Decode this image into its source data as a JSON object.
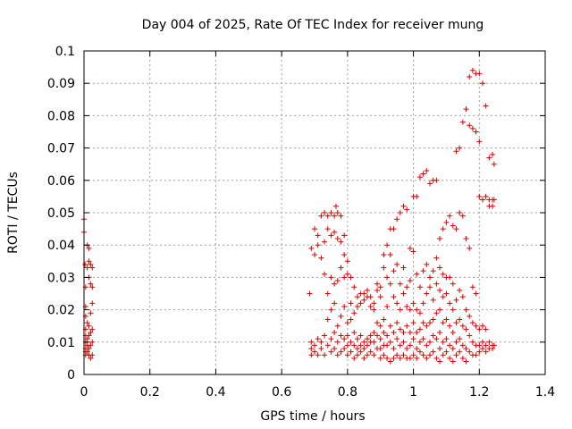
{
  "chart_data": {
    "type": "scatter",
    "title": "Day 004 of 2025, Rate Of TEC Index for receiver mung",
    "xlabel": "GPS time / hours",
    "ylabel": "ROTI / TECUs",
    "xlim": [
      0,
      1.4
    ],
    "ylim": [
      0,
      0.1
    ],
    "x_ticks": [
      "0",
      "0.2",
      "0.4",
      "0.6",
      "0.8",
      "1",
      "1.2",
      "1.4"
    ],
    "y_ticks": [
      "0",
      "0.01",
      "0.02",
      "0.03",
      "0.04",
      "0.05",
      "0.06",
      "0.07",
      "0.08",
      "0.09",
      "0.1"
    ],
    "grid": true,
    "marker": "+",
    "color": "#dd0000",
    "points": [
      [
        0.0,
        0.048
      ],
      [
        0.0,
        0.044
      ],
      [
        0.003,
        0.034
      ],
      [
        0.005,
        0.027
      ],
      [
        0.005,
        0.021
      ],
      [
        0.005,
        0.018
      ],
      [
        0.005,
        0.014
      ],
      [
        0.005,
        0.012
      ],
      [
        0.005,
        0.01
      ],
      [
        0.005,
        0.008
      ],
      [
        0.005,
        0.007
      ],
      [
        0.005,
        0.006
      ],
      [
        0.01,
        0.04
      ],
      [
        0.01,
        0.033
      ],
      [
        0.01,
        0.016
      ],
      [
        0.01,
        0.011
      ],
      [
        0.01,
        0.009
      ],
      [
        0.01,
        0.007
      ],
      [
        0.015,
        0.039
      ],
      [
        0.015,
        0.035
      ],
      [
        0.015,
        0.03
      ],
      [
        0.015,
        0.015
      ],
      [
        0.015,
        0.012
      ],
      [
        0.015,
        0.008
      ],
      [
        0.015,
        0.006
      ],
      [
        0.02,
        0.034
      ],
      [
        0.02,
        0.028
      ],
      [
        0.02,
        0.019
      ],
      [
        0.02,
        0.013
      ],
      [
        0.02,
        0.009
      ],
      [
        0.02,
        0.005
      ],
      [
        0.025,
        0.033
      ],
      [
        0.025,
        0.027
      ],
      [
        0.025,
        0.022
      ],
      [
        0.025,
        0.014
      ],
      [
        0.025,
        0.01
      ],
      [
        0.025,
        0.006
      ],
      [
        0.685,
        0.025
      ],
      [
        0.69,
        0.039
      ],
      [
        0.69,
        0.01
      ],
      [
        0.69,
        0.008
      ],
      [
        0.69,
        0.006
      ],
      [
        0.7,
        0.045
      ],
      [
        0.7,
        0.037
      ],
      [
        0.7,
        0.009
      ],
      [
        0.7,
        0.007
      ],
      [
        0.71,
        0.043
      ],
      [
        0.71,
        0.04
      ],
      [
        0.71,
        0.011
      ],
      [
        0.71,
        0.006
      ],
      [
        0.72,
        0.049
      ],
      [
        0.72,
        0.036
      ],
      [
        0.72,
        0.008
      ],
      [
        0.72,
        0.01
      ],
      [
        0.73,
        0.05
      ],
      [
        0.73,
        0.041
      ],
      [
        0.73,
        0.031
      ],
      [
        0.73,
        0.012
      ],
      [
        0.73,
        0.006
      ],
      [
        0.74,
        0.049
      ],
      [
        0.74,
        0.045
      ],
      [
        0.74,
        0.025
      ],
      [
        0.74,
        0.017
      ],
      [
        0.74,
        0.009
      ],
      [
        0.75,
        0.05
      ],
      [
        0.75,
        0.043
      ],
      [
        0.75,
        0.03
      ],
      [
        0.75,
        0.02
      ],
      [
        0.75,
        0.011
      ],
      [
        0.75,
        0.007
      ],
      [
        0.76,
        0.049
      ],
      [
        0.76,
        0.044
      ],
      [
        0.76,
        0.028
      ],
      [
        0.76,
        0.022
      ],
      [
        0.76,
        0.013
      ],
      [
        0.76,
        0.008
      ],
      [
        0.765,
        0.052
      ],
      [
        0.77,
        0.05
      ],
      [
        0.77,
        0.042
      ],
      [
        0.77,
        0.029
      ],
      [
        0.77,
        0.015
      ],
      [
        0.77,
        0.01
      ],
      [
        0.77,
        0.006
      ],
      [
        0.78,
        0.049
      ],
      [
        0.78,
        0.041
      ],
      [
        0.78,
        0.033
      ],
      [
        0.78,
        0.018
      ],
      [
        0.78,
        0.012
      ],
      [
        0.78,
        0.007
      ],
      [
        0.79,
        0.043
      ],
      [
        0.79,
        0.037
      ],
      [
        0.79,
        0.03
      ],
      [
        0.79,
        0.021
      ],
      [
        0.79,
        0.011
      ],
      [
        0.79,
        0.008
      ],
      [
        0.8,
        0.035
      ],
      [
        0.8,
        0.031
      ],
      [
        0.8,
        0.016
      ],
      [
        0.8,
        0.012
      ],
      [
        0.8,
        0.009
      ],
      [
        0.8,
        0.006
      ],
      [
        0.81,
        0.03
      ],
      [
        0.81,
        0.022
      ],
      [
        0.81,
        0.017
      ],
      [
        0.81,
        0.01
      ],
      [
        0.81,
        0.007
      ],
      [
        0.82,
        0.027
      ],
      [
        0.82,
        0.019
      ],
      [
        0.82,
        0.013
      ],
      [
        0.82,
        0.009
      ],
      [
        0.82,
        0.005
      ],
      [
        0.83,
        0.024
      ],
      [
        0.83,
        0.021
      ],
      [
        0.83,
        0.011
      ],
      [
        0.83,
        0.008
      ],
      [
        0.83,
        0.006
      ],
      [
        0.84,
        0.025
      ],
      [
        0.84,
        0.022
      ],
      [
        0.84,
        0.012
      ],
      [
        0.84,
        0.009
      ],
      [
        0.84,
        0.007
      ],
      [
        0.85,
        0.025
      ],
      [
        0.85,
        0.023
      ],
      [
        0.85,
        0.01
      ],
      [
        0.85,
        0.008
      ],
      [
        0.85,
        0.005
      ],
      [
        0.86,
        0.026
      ],
      [
        0.86,
        0.024
      ],
      [
        0.86,
        0.011
      ],
      [
        0.86,
        0.009
      ],
      [
        0.86,
        0.006
      ],
      [
        0.87,
        0.024
      ],
      [
        0.87,
        0.021
      ],
      [
        0.87,
        0.012
      ],
      [
        0.87,
        0.01
      ],
      [
        0.87,
        0.007
      ],
      [
        0.88,
        0.022
      ],
      [
        0.88,
        0.02
      ],
      [
        0.88,
        0.013
      ],
      [
        0.88,
        0.01
      ],
      [
        0.88,
        0.006
      ],
      [
        0.89,
        0.028
      ],
      [
        0.89,
        0.026
      ],
      [
        0.89,
        0.016
      ],
      [
        0.89,
        0.012
      ],
      [
        0.89,
        0.008
      ],
      [
        0.9,
        0.027
      ],
      [
        0.9,
        0.024
      ],
      [
        0.9,
        0.015
      ],
      [
        0.9,
        0.011
      ],
      [
        0.9,
        0.008
      ],
      [
        0.9,
        0.005
      ],
      [
        0.91,
        0.037
      ],
      [
        0.91,
        0.033
      ],
      [
        0.91,
        0.017
      ],
      [
        0.91,
        0.013
      ],
      [
        0.91,
        0.009
      ],
      [
        0.91,
        0.006
      ],
      [
        0.92,
        0.04
      ],
      [
        0.92,
        0.03
      ],
      [
        0.92,
        0.021
      ],
      [
        0.92,
        0.012
      ],
      [
        0.92,
        0.009
      ],
      [
        0.92,
        0.005
      ],
      [
        0.93,
        0.045
      ],
      [
        0.93,
        0.037
      ],
      [
        0.93,
        0.028
      ],
      [
        0.93,
        0.015
      ],
      [
        0.93,
        0.01
      ],
      [
        0.93,
        0.004
      ],
      [
        0.94,
        0.045
      ],
      [
        0.94,
        0.032
      ],
      [
        0.94,
        0.024
      ],
      [
        0.94,
        0.013
      ],
      [
        0.94,
        0.008
      ],
      [
        0.94,
        0.005
      ],
      [
        0.95,
        0.048
      ],
      [
        0.95,
        0.034
      ],
      [
        0.95,
        0.022
      ],
      [
        0.95,
        0.016
      ],
      [
        0.95,
        0.011
      ],
      [
        0.95,
        0.006
      ],
      [
        0.96,
        0.05
      ],
      [
        0.96,
        0.028
      ],
      [
        0.96,
        0.02
      ],
      [
        0.96,
        0.014
      ],
      [
        0.96,
        0.009
      ],
      [
        0.96,
        0.005
      ],
      [
        0.97,
        0.052
      ],
      [
        0.97,
        0.033
      ],
      [
        0.97,
        0.025
      ],
      [
        0.97,
        0.013
      ],
      [
        0.97,
        0.01
      ],
      [
        0.97,
        0.006
      ],
      [
        0.98,
        0.051
      ],
      [
        0.98,
        0.027
      ],
      [
        0.98,
        0.021
      ],
      [
        0.98,
        0.015
      ],
      [
        0.98,
        0.008
      ],
      [
        0.98,
        0.005
      ],
      [
        0.99,
        0.039
      ],
      [
        0.99,
        0.029
      ],
      [
        0.99,
        0.02
      ],
      [
        0.99,
        0.013
      ],
      [
        0.99,
        0.009
      ],
      [
        0.99,
        0.005
      ],
      [
        1.0,
        0.055
      ],
      [
        1.0,
        0.038
      ],
      [
        1.0,
        0.022
      ],
      [
        1.0,
        0.016
      ],
      [
        1.0,
        0.011
      ],
      [
        1.0,
        0.006
      ],
      [
        1.01,
        0.055
      ],
      [
        1.01,
        0.031
      ],
      [
        1.01,
        0.02
      ],
      [
        1.01,
        0.013
      ],
      [
        1.01,
        0.008
      ],
      [
        1.01,
        0.005
      ],
      [
        1.02,
        0.061
      ],
      [
        1.02,
        0.027
      ],
      [
        1.02,
        0.019
      ],
      [
        1.02,
        0.014
      ],
      [
        1.02,
        0.01
      ],
      [
        1.02,
        0.007
      ],
      [
        1.03,
        0.062
      ],
      [
        1.03,
        0.032
      ],
      [
        1.03,
        0.022
      ],
      [
        1.03,
        0.016
      ],
      [
        1.03,
        0.011
      ],
      [
        1.03,
        0.006
      ],
      [
        1.04,
        0.063
      ],
      [
        1.04,
        0.034
      ],
      [
        1.04,
        0.025
      ],
      [
        1.04,
        0.015
      ],
      [
        1.04,
        0.009
      ],
      [
        1.04,
        0.005
      ],
      [
        1.05,
        0.059
      ],
      [
        1.05,
        0.03
      ],
      [
        1.05,
        0.027
      ],
      [
        1.05,
        0.016
      ],
      [
        1.05,
        0.01
      ],
      [
        1.05,
        0.006
      ],
      [
        1.06,
        0.06
      ],
      [
        1.06,
        0.032
      ],
      [
        1.06,
        0.023
      ],
      [
        1.06,
        0.017
      ],
      [
        1.06,
        0.012
      ],
      [
        1.06,
        0.007
      ],
      [
        1.07,
        0.06
      ],
      [
        1.07,
        0.036
      ],
      [
        1.07,
        0.028
      ],
      [
        1.07,
        0.019
      ],
      [
        1.07,
        0.011
      ],
      [
        1.07,
        0.005
      ],
      [
        1.08,
        0.042
      ],
      [
        1.08,
        0.033
      ],
      [
        1.08,
        0.026
      ],
      [
        1.08,
        0.02
      ],
      [
        1.08,
        0.013
      ],
      [
        1.08,
        0.008
      ],
      [
        1.08,
        0.004
      ],
      [
        1.09,
        0.045
      ],
      [
        1.09,
        0.031
      ],
      [
        1.09,
        0.024
      ],
      [
        1.09,
        0.016
      ],
      [
        1.09,
        0.01
      ],
      [
        1.09,
        0.006
      ],
      [
        1.1,
        0.047
      ],
      [
        1.1,
        0.03
      ],
      [
        1.1,
        0.025
      ],
      [
        1.1,
        0.017
      ],
      [
        1.1,
        0.011
      ],
      [
        1.1,
        0.007
      ],
      [
        1.11,
        0.049
      ],
      [
        1.11,
        0.03
      ],
      [
        1.11,
        0.022
      ],
      [
        1.11,
        0.015
      ],
      [
        1.11,
        0.009
      ],
      [
        1.11,
        0.005
      ],
      [
        1.12,
        0.046
      ],
      [
        1.12,
        0.028
      ],
      [
        1.12,
        0.02
      ],
      [
        1.12,
        0.013
      ],
      [
        1.12,
        0.008
      ],
      [
        1.12,
        0.004
      ],
      [
        1.13,
        0.069
      ],
      [
        1.13,
        0.045
      ],
      [
        1.13,
        0.023
      ],
      [
        1.13,
        0.016
      ],
      [
        1.13,
        0.01
      ],
      [
        1.13,
        0.006
      ],
      [
        1.14,
        0.07
      ],
      [
        1.14,
        0.05
      ],
      [
        1.14,
        0.026
      ],
      [
        1.14,
        0.017
      ],
      [
        1.14,
        0.011
      ],
      [
        1.14,
        0.007
      ],
      [
        1.15,
        0.078
      ],
      [
        1.15,
        0.049
      ],
      [
        1.15,
        0.024
      ],
      [
        1.15,
        0.015
      ],
      [
        1.15,
        0.009
      ],
      [
        1.15,
        0.005
      ],
      [
        1.16,
        0.082
      ],
      [
        1.16,
        0.042
      ],
      [
        1.16,
        0.02
      ],
      [
        1.16,
        0.014
      ],
      [
        1.16,
        0.008
      ],
      [
        1.16,
        0.004
      ],
      [
        1.17,
        0.092
      ],
      [
        1.17,
        0.077
      ],
      [
        1.17,
        0.039
      ],
      [
        1.17,
        0.018
      ],
      [
        1.17,
        0.012
      ],
      [
        1.17,
        0.007
      ],
      [
        1.18,
        0.094
      ],
      [
        1.18,
        0.076
      ],
      [
        1.18,
        0.027
      ],
      [
        1.18,
        0.016
      ],
      [
        1.18,
        0.01
      ],
      [
        1.18,
        0.006
      ],
      [
        1.19,
        0.093
      ],
      [
        1.19,
        0.075
      ],
      [
        1.19,
        0.025
      ],
      [
        1.19,
        0.015
      ],
      [
        1.19,
        0.009
      ],
      [
        1.19,
        0.006
      ],
      [
        1.2,
        0.093
      ],
      [
        1.2,
        0.072
      ],
      [
        1.2,
        0.055
      ],
      [
        1.2,
        0.014
      ],
      [
        1.2,
        0.009
      ],
      [
        1.2,
        0.007
      ],
      [
        1.21,
        0.09
      ],
      [
        1.21,
        0.054
      ],
      [
        1.21,
        0.015
      ],
      [
        1.21,
        0.01
      ],
      [
        1.21,
        0.008
      ],
      [
        1.22,
        0.083
      ],
      [
        1.22,
        0.055
      ],
      [
        1.22,
        0.014
      ],
      [
        1.22,
        0.009
      ],
      [
        1.22,
        0.007
      ],
      [
        1.23,
        0.067
      ],
      [
        1.23,
        0.054
      ],
      [
        1.23,
        0.052
      ],
      [
        1.23,
        0.01
      ],
      [
        1.23,
        0.008
      ],
      [
        1.24,
        0.068
      ],
      [
        1.24,
        0.054
      ],
      [
        1.24,
        0.052
      ],
      [
        1.24,
        0.009
      ],
      [
        1.24,
        0.008
      ],
      [
        1.245,
        0.065
      ],
      [
        1.245,
        0.054
      ],
      [
        1.245,
        0.009
      ]
    ]
  }
}
